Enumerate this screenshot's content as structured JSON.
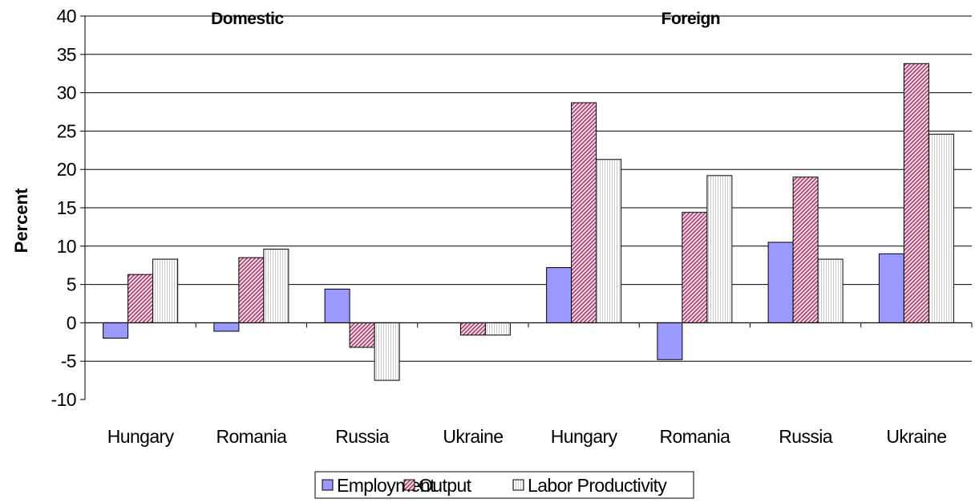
{
  "chart_data": {
    "type": "bar",
    "ylabel": "Percent",
    "xlabel": "",
    "ylim": [
      -10,
      40
    ],
    "ytick_step": 5,
    "grid": true,
    "legend_position": "bottom",
    "groups": [
      {
        "label": "Domestic",
        "categories": [
          "Hungary",
          "Romania",
          "Russia",
          "Ukraine"
        ]
      },
      {
        "label": "Foreign",
        "categories": [
          "Hungary",
          "Romania",
          "Russia",
          "Ukraine"
        ]
      }
    ],
    "categories": [
      "Hungary",
      "Romania",
      "Russia",
      "Ukraine",
      "Hungary",
      "Romania",
      "Russia",
      "Ukraine"
    ],
    "series": [
      {
        "name": "Employment",
        "color": "#9999ff",
        "pattern": "solid",
        "values": [
          -2.0,
          -1.1,
          4.4,
          0.0,
          7.2,
          -4.8,
          10.5,
          9.0
        ]
      },
      {
        "name": "Output",
        "color": "#993366",
        "pattern": "diagonal-hatch",
        "values": [
          6.3,
          8.5,
          -3.2,
          -1.6,
          28.7,
          14.4,
          19.0,
          33.8
        ]
      },
      {
        "name": "Labor Productivity",
        "color": "#c0c0c0",
        "pattern": "vertical-lines",
        "values": [
          8.3,
          9.6,
          -7.5,
          -1.6,
          21.3,
          19.2,
          8.3,
          24.6
        ]
      }
    ]
  }
}
